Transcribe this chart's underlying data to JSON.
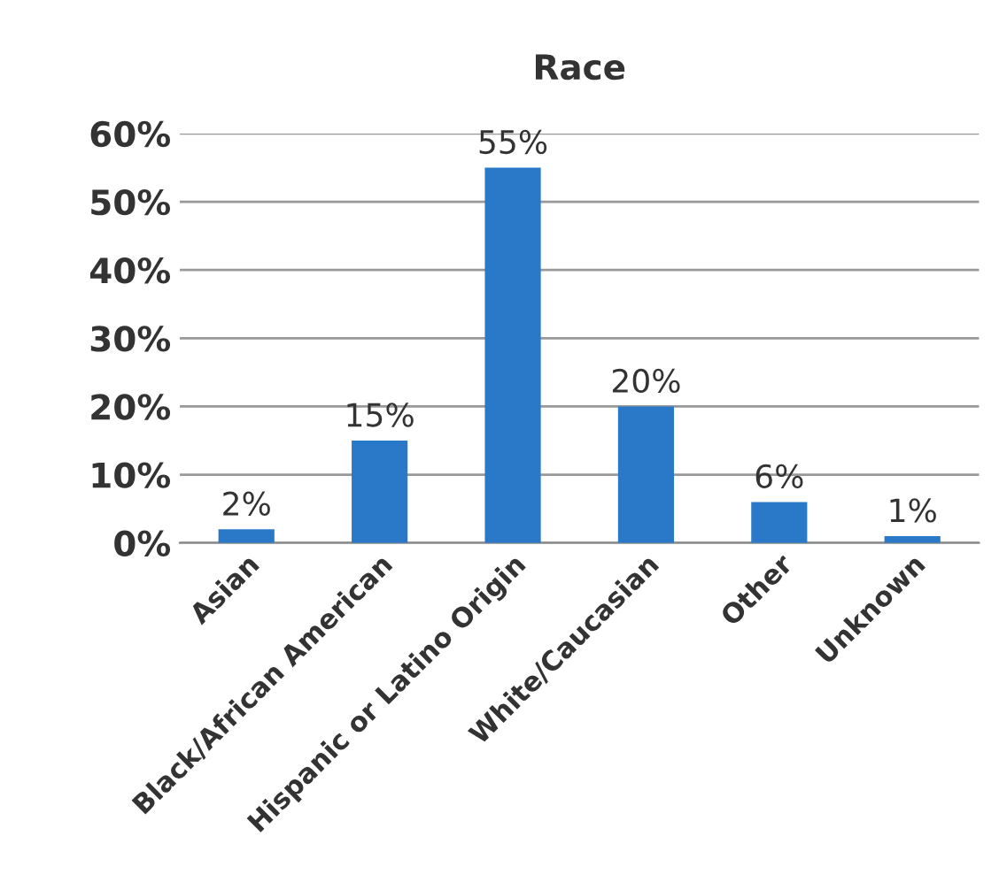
{
  "chart_data": {
    "type": "bar",
    "title": "Race",
    "categories": [
      "Asian",
      "Black/African American",
      "Hispanic or Latino Origin",
      "White/Caucasian",
      "Other",
      "Unknown"
    ],
    "values": [
      2,
      15,
      55,
      20,
      6,
      1
    ],
    "value_labels": [
      "2%",
      "15%",
      "55%",
      "20%",
      "6%",
      "1%"
    ],
    "color": "#2a78c8",
    "ylim": [
      0,
      60
    ],
    "yticks": [
      {
        "value": 0,
        "label": "0%"
      },
      {
        "value": 10,
        "label": "10%"
      },
      {
        "value": 20,
        "label": "20%"
      },
      {
        "value": 30,
        "label": "30%"
      },
      {
        "value": 40,
        "label": "40%"
      },
      {
        "value": 50,
        "label": "50%"
      },
      {
        "value": 60,
        "label": "60%"
      }
    ],
    "grid": "y"
  }
}
